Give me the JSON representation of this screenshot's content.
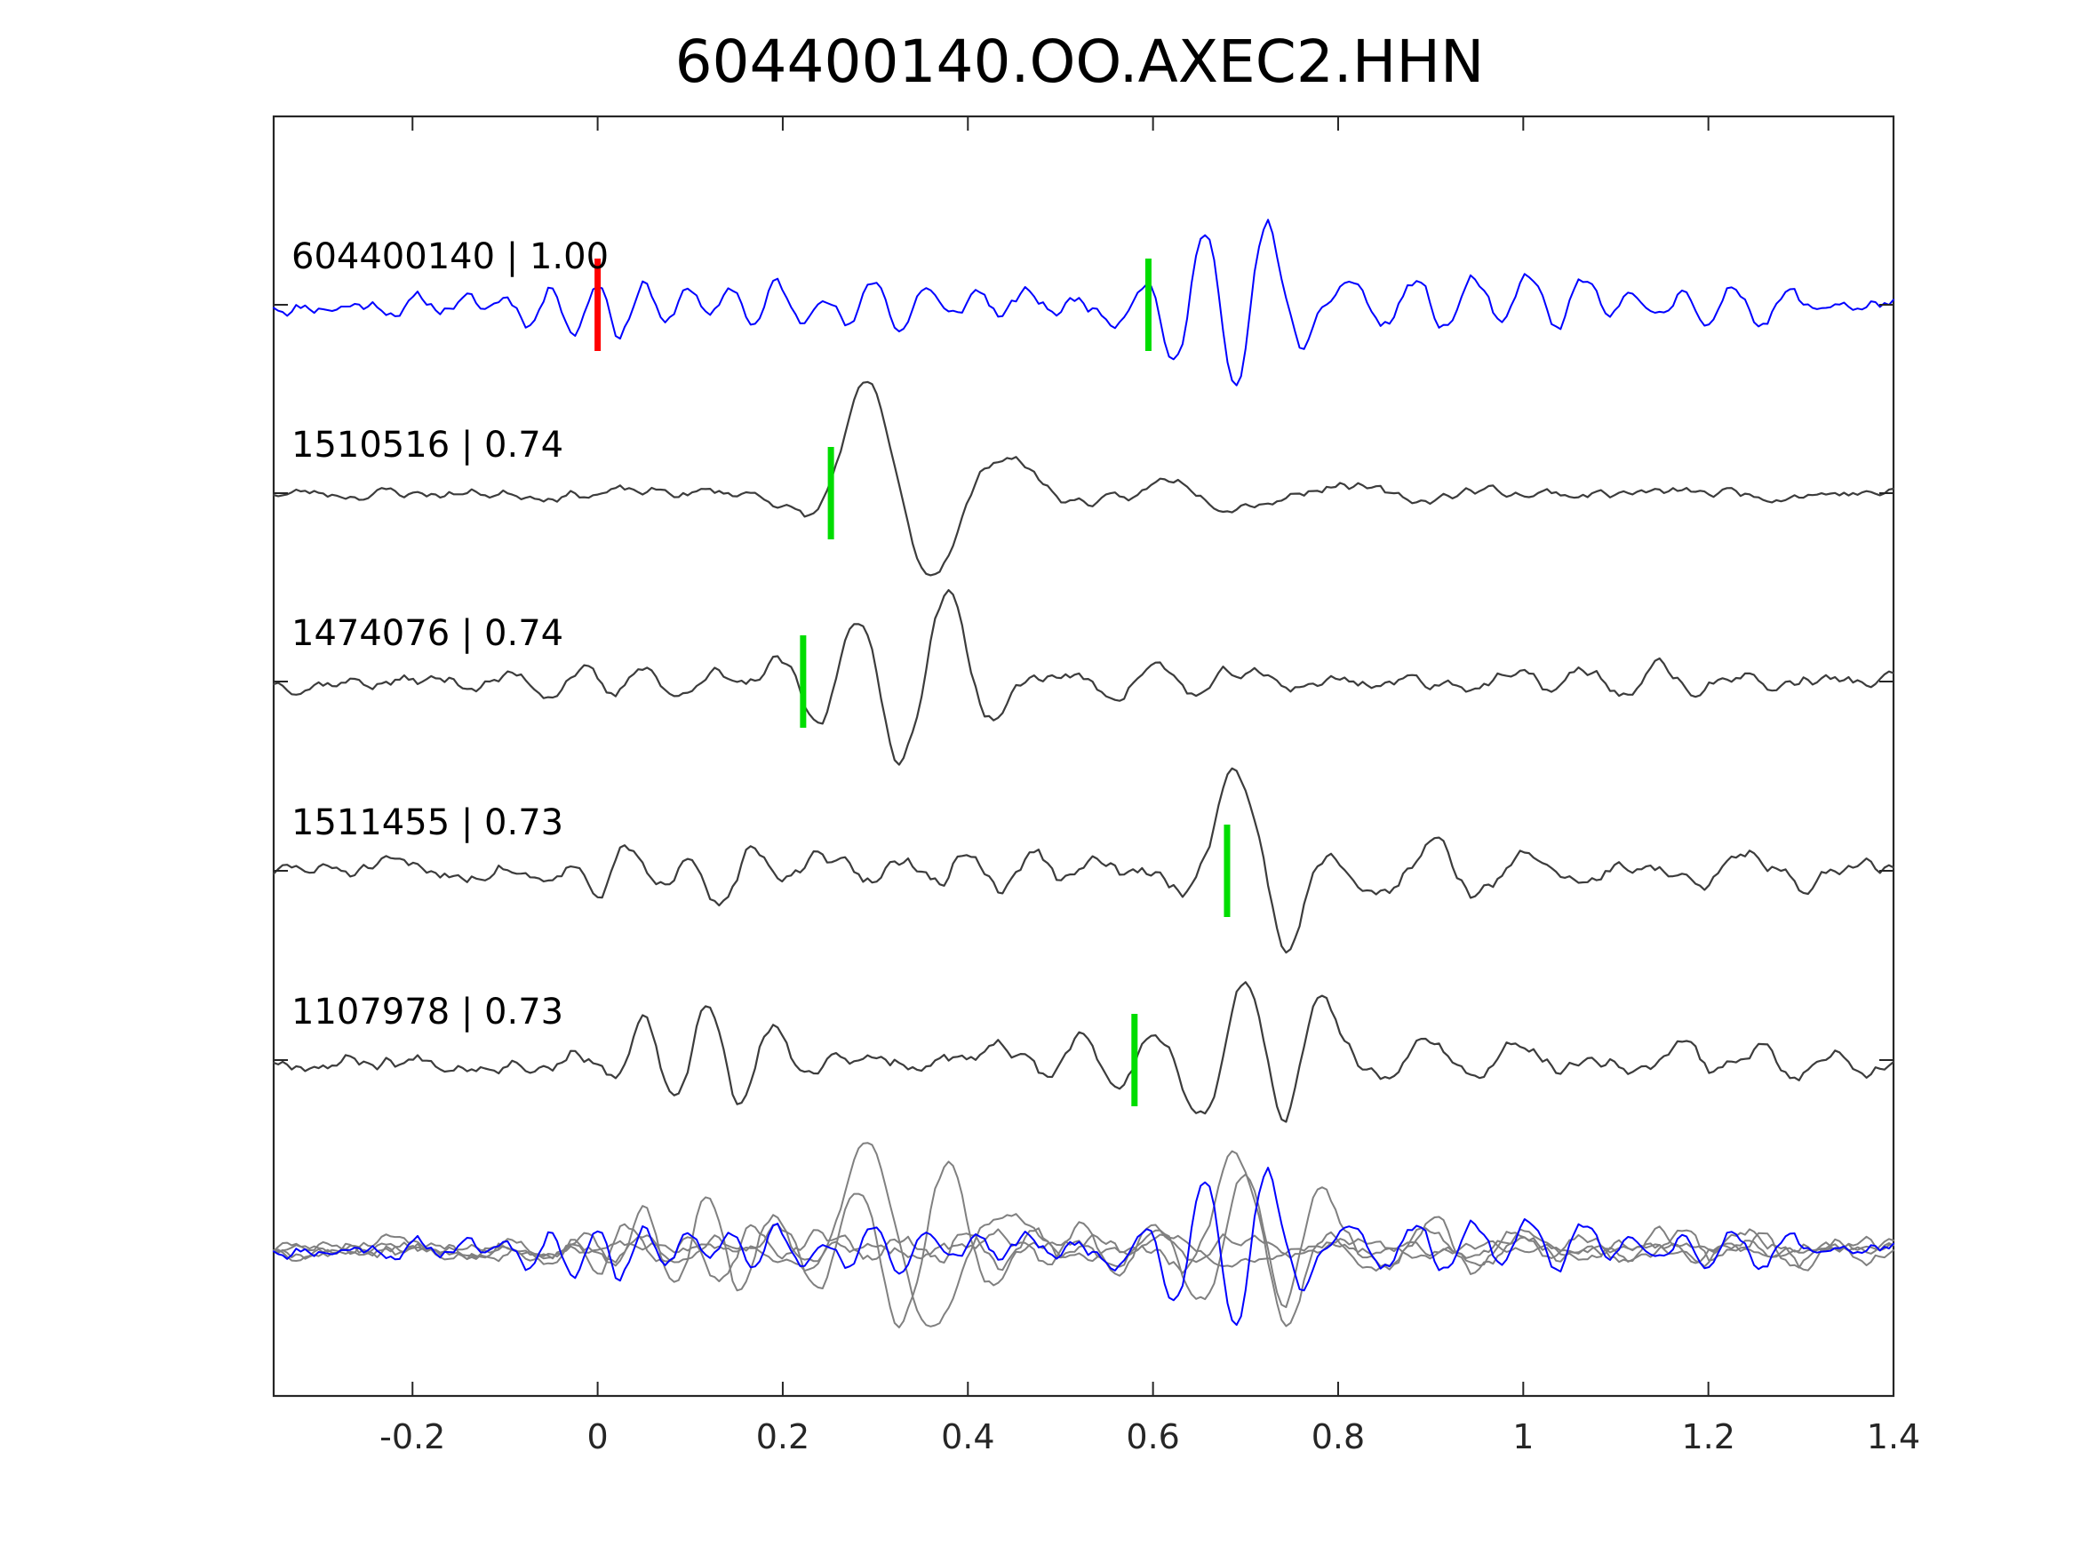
{
  "chart_data": {
    "type": "line",
    "title": "604400140.OO.AXEC2.HHN",
    "xlabel": "",
    "ylabel": "",
    "xlim": [
      -0.35,
      1.4
    ],
    "xticks": [
      -0.2,
      0,
      0.2,
      0.4,
      0.6,
      0.8,
      1,
      1.2,
      1.4
    ],
    "xtick_labels": [
      "-0.2",
      "0",
      "0.2",
      "0.4",
      "0.6",
      "0.8",
      "1",
      "1.2",
      "1.4"
    ],
    "grid": false,
    "legend": "none",
    "colors": {
      "template": "#0000ff",
      "neighbor": "#3c3c3c",
      "overlay_neighbor": "#808080",
      "reference_pick": "#ff0000",
      "aligned_pick": "#00dd00"
    },
    "reference_pick_time": 0.0,
    "traces": [
      {
        "label": "604400140 | 1.00",
        "id": "604400140",
        "cc": 1.0,
        "color": "#0000ff",
        "pick_time": 0.595,
        "noise": 0.26,
        "seed": 11,
        "bursts": [
          [
            0.05,
            0.1,
            0.55,
            20
          ],
          [
            0.3,
            0.12,
            0.4,
            18
          ],
          [
            0.66,
            0.05,
            1.7,
            14
          ],
          [
            0.72,
            0.05,
            1.2,
            12
          ],
          [
            0.88,
            0.12,
            0.45,
            16
          ],
          [
            1.12,
            0.15,
            0.35,
            18
          ]
        ]
      },
      {
        "label": "1510516 | 0.74",
        "id": "1510516",
        "cc": 0.74,
        "color": "#3c3c3c",
        "pick_time": 0.252,
        "noise": 0.16,
        "seed": 23,
        "bursts": [
          [
            0.29,
            0.045,
            1.7,
            6
          ],
          [
            0.36,
            0.05,
            -1.0,
            6
          ],
          [
            0.45,
            0.05,
            0.5,
            6
          ],
          [
            0.62,
            0.06,
            0.25,
            8
          ],
          [
            0.8,
            0.1,
            0.2,
            6
          ]
        ]
      },
      {
        "label": "1474076 | 0.74",
        "id": "1474076",
        "cc": 0.74,
        "color": "#3c3c3c",
        "pick_time": 0.222,
        "noise": 0.22,
        "seed": 37,
        "bursts": [
          [
            0.05,
            0.08,
            0.4,
            14
          ],
          [
            0.28,
            0.05,
            1.3,
            11
          ],
          [
            0.38,
            0.04,
            1.5,
            9
          ],
          [
            0.6,
            0.08,
            0.3,
            10
          ],
          [
            1.15,
            0.1,
            0.25,
            12
          ]
        ]
      },
      {
        "label": "1511455 | 0.73",
        "id": "1511455",
        "cc": 0.73,
        "color": "#3c3c3c",
        "pick_time": 0.68,
        "noise": 0.26,
        "seed": 51,
        "bursts": [
          [
            0.1,
            0.1,
            0.5,
            15
          ],
          [
            0.4,
            0.1,
            0.4,
            14
          ],
          [
            0.69,
            0.04,
            1.7,
            6
          ],
          [
            0.74,
            0.03,
            -1.0,
            8
          ],
          [
            0.9,
            0.1,
            0.5,
            9
          ],
          [
            1.25,
            0.08,
            0.45,
            8
          ]
        ]
      },
      {
        "label": "1107978 | 0.73",
        "id": "1107978",
        "cc": 0.73,
        "color": "#3c3c3c",
        "pick_time": 0.58,
        "noise": 0.24,
        "seed": 67,
        "bursts": [
          [
            0.12,
            0.08,
            1.0,
            14
          ],
          [
            0.52,
            0.06,
            0.5,
            12
          ],
          [
            0.7,
            0.06,
            1.5,
            10
          ],
          [
            0.77,
            0.03,
            1.0,
            8
          ],
          [
            0.9,
            0.1,
            0.4,
            10
          ],
          [
            1.25,
            0.08,
            0.35,
            12
          ]
        ]
      }
    ],
    "overlay": {
      "description": "all traces superimposed",
      "template_index": 0
    }
  }
}
